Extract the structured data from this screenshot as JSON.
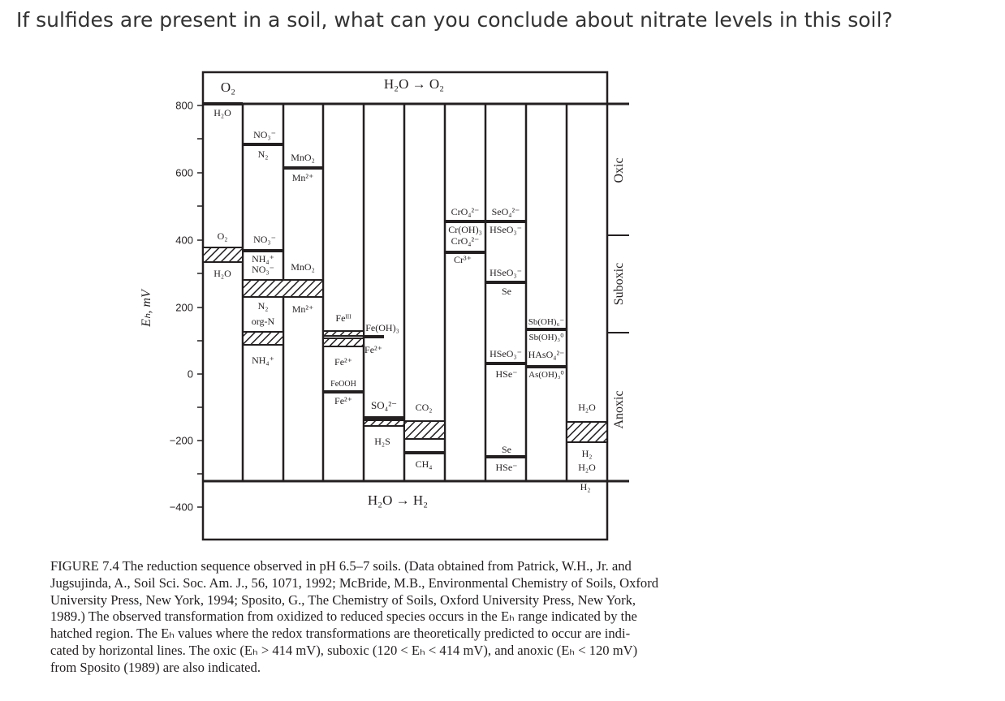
{
  "question": "If sulfides are present in a soil, what can you conclude about nitrate levels in this soil?",
  "figure": {
    "y_axis_label": "Eₕ, mV",
    "y_ticks": [
      "800",
      "600",
      "400",
      "200",
      "0",
      "−200",
      "−400"
    ],
    "top_label_left": "O₂",
    "top_label": "H₂O → O₂",
    "bottom_label": "H₂O → H₂",
    "zones": [
      "Oxic",
      "Suboxic",
      "Anoxic"
    ],
    "labels": {
      "c1": [
        "H₂O",
        "O₂",
        "H₂O"
      ],
      "c2": [
        "NO₃⁻",
        "N₂",
        "NO₃⁻",
        "NH₄⁺",
        "NO₃⁻",
        "N₂",
        "org-N",
        "NH₄⁺"
      ],
      "c3": [
        "MnO₂",
        "Mn²⁺",
        "MnO₂",
        "Mn²⁺"
      ],
      "c4": [
        "Feᴵᴵᴵ",
        "Fe²⁺",
        "FeOOH",
        "Fe²⁺"
      ],
      "c5": [
        "Fe(OH)₃",
        "Fe²⁺",
        "SO₄²⁻",
        "H₂S"
      ],
      "c6": [
        "CO₂",
        "CH₄"
      ],
      "c7": [
        "CrO₄²⁻",
        "Cr(OH)₃",
        "CrO₄²⁻",
        "Cr³⁺"
      ],
      "c8": [
        "SeO₄²⁻",
        "HSeO₃⁻",
        "HSeO₃⁻",
        "Se",
        "HSeO₃⁻",
        "HSe⁻",
        "Se",
        "HSe⁻"
      ],
      "c9": [
        "Sb(OH)₆⁻",
        "Sb(OH)₃⁰",
        "HAsO₄²⁻",
        "As(OH)₃⁰"
      ],
      "c10": [
        "H₂O",
        "H₂",
        "H₂O",
        "H₂"
      ]
    }
  },
  "caption": [
    "FIGURE 7.4   The reduction sequence observed in pH 6.5–7 soils. (Data obtained from Patrick, W.H., Jr. and",
    "Jugsujinda, A., Soil Sci. Soc. Am. J., 56, 1071, 1992; McBride, M.B., Environmental Chemistry of Soils, Oxford",
    "University Press, New York, 1994; Sposito, G., The Chemistry of Soils, Oxford University Press, New York,",
    "1989.) The observed transformation from oxidized to reduced species occurs in the Eₕ range indicated by the",
    "hatched region. The Eₕ values where the redox transformations are theoretically predicted to occur are indi-",
    "cated by horizontal lines. The oxic (Eₕ > 414 mV), suboxic (120 < Eₕ < 414 mV), and anoxic (Eₕ < 120 mV)",
    "from Sposito (1989) are also indicated."
  ]
}
